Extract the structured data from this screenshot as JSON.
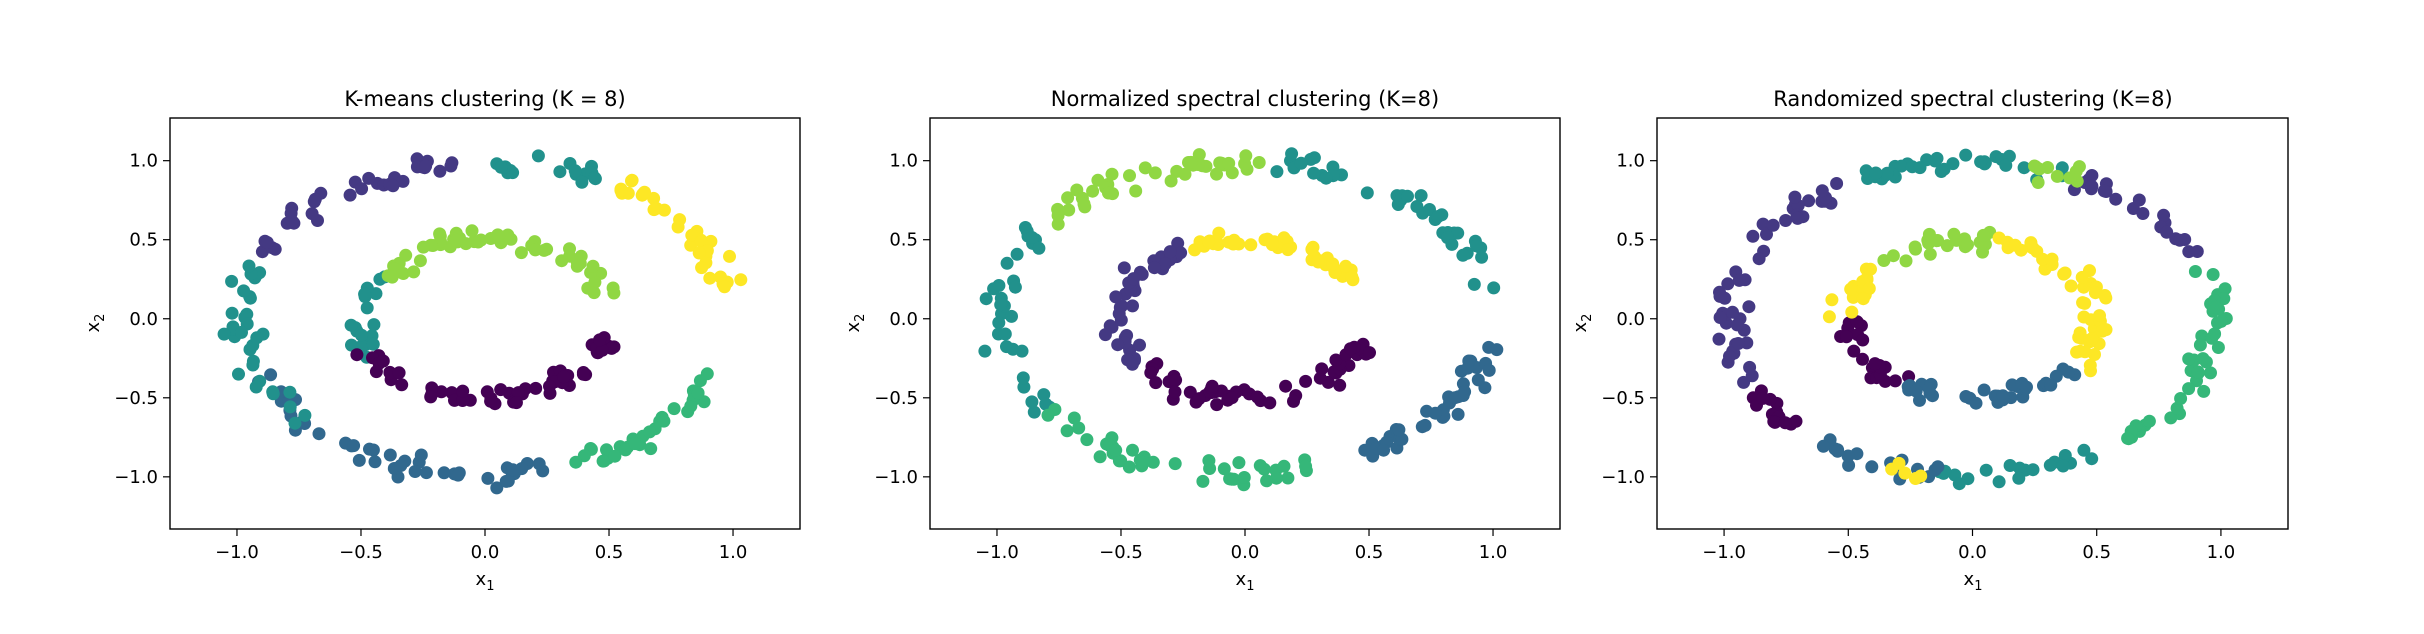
{
  "chart_data": [
    {
      "type": "scatter",
      "title": "K-means clustering (K = 8)",
      "xlabel": "x",
      "xlabel_sub": "1",
      "ylabel": "x",
      "ylabel_sub": "2",
      "xlim": [
        -1.27,
        1.27
      ],
      "ylim": [
        -1.33,
        1.27
      ],
      "xticks": [
        -1.0,
        -0.5,
        0.0,
        0.5,
        1.0
      ],
      "xtick_labels": [
        "−1.0",
        "−0.5",
        "0.0",
        "0.5",
        "1.0"
      ],
      "yticks": [
        -1.0,
        -0.5,
        0.0,
        0.5,
        1.0
      ],
      "ytick_labels": [
        "−1.0",
        "−0.5",
        "0.0",
        "0.5",
        "1.0"
      ],
      "grid": false,
      "groups": [
        {
          "color": "#fde725",
          "arcs": [
            {
              "r": 0.99,
              "a0": 10,
              "a1": 58,
              "n": 34,
              "ring": "outer"
            }
          ]
        },
        {
          "color": "#35b779",
          "arcs": [
            {
              "r": 0.99,
              "a0": -70,
              "a1": -18,
              "n": 34,
              "ring": "outer"
            }
          ]
        },
        {
          "color": "#31688e",
          "arcs": [
            {
              "r": 0.99,
              "a0": -158,
              "a1": -75,
              "n": 44,
              "ring": "outer"
            }
          ]
        },
        {
          "color": "#21918c",
          "arcs": [
            {
              "r": 0.99,
              "a0": 160,
              "a1": 222,
              "n": 34,
              "ring": "outer"
            },
            {
              "r": 0.99,
              "a0": 62,
              "a1": 95,
              "n": 18,
              "ring": "outer"
            },
            {
              "r": 0.5,
              "a0": 148,
              "a1": 208,
              "n": 18,
              "ring": "inner"
            }
          ]
        },
        {
          "color": "#443983",
          "arcs": [
            {
              "r": 0.99,
              "a0": 97,
              "a1": 155,
              "n": 34,
              "ring": "outer"
            }
          ]
        },
        {
          "color": "#90d743",
          "arcs": [
            {
              "r": 0.5,
              "a0": 15,
              "a1": 145,
              "n": 54,
              "ring": "inner"
            }
          ]
        },
        {
          "color": "#440154",
          "arcs": [
            {
              "r": 0.5,
              "a0": 200,
              "a1": 345,
              "n": 62,
              "ring": "inner"
            }
          ]
        }
      ]
    },
    {
      "type": "scatter",
      "title": "Normalized spectral clustering (K=8)",
      "xlabel": "x",
      "xlabel_sub": "1",
      "ylabel": "x",
      "ylabel_sub": "2",
      "xlim": [
        -1.27,
        1.27
      ],
      "ylim": [
        -1.33,
        1.27
      ],
      "xticks": [
        -1.0,
        -0.5,
        0.0,
        0.5,
        1.0
      ],
      "xtick_labels": [
        "−1.0",
        "−0.5",
        "0.0",
        "0.5",
        "1.0"
      ],
      "yticks": [
        -1.0,
        -0.5,
        0.0,
        0.5,
        1.0
      ],
      "ytick_labels": [
        "−1.0",
        "−0.5",
        "0.0",
        "0.5",
        "1.0"
      ],
      "grid": false,
      "groups": [
        {
          "color": "#90d743",
          "arcs": [
            {
              "r": 0.99,
              "a0": 85,
              "a1": 140,
              "n": 40,
              "ring": "outer"
            }
          ]
        },
        {
          "color": "#21918c",
          "arcs": [
            {
              "r": 0.99,
              "a0": 10,
              "a1": 82,
              "n": 40,
              "ring": "outer"
            },
            {
              "r": 0.99,
              "a0": 145,
              "a1": 215,
              "n": 34,
              "ring": "outer"
            }
          ]
        },
        {
          "color": "#35b779",
          "arcs": [
            {
              "r": 0.99,
              "a0": 218,
              "a1": 288,
              "n": 46,
              "ring": "outer"
            }
          ]
        },
        {
          "color": "#31688e",
          "arcs": [
            {
              "r": 0.99,
              "a0": 292,
              "a1": 350,
              "n": 40,
              "ring": "outer"
            }
          ]
        },
        {
          "color": "#fde725",
          "arcs": [
            {
              "r": 0.5,
              "a0": 28,
              "a1": 115,
              "n": 44,
              "ring": "inner"
            }
          ]
        },
        {
          "color": "#443983",
          "arcs": [
            {
              "r": 0.5,
              "a0": 120,
              "a1": 215,
              "n": 40,
              "ring": "inner"
            }
          ]
        },
        {
          "color": "#440154",
          "arcs": [
            {
              "r": 0.5,
              "a0": 220,
              "a1": 345,
              "n": 54,
              "ring": "inner"
            }
          ]
        }
      ]
    },
    {
      "type": "scatter",
      "title": "Randomized spectral clustering (K=8)",
      "xlabel": "x",
      "xlabel_sub": "1",
      "ylabel": "x",
      "ylabel_sub": "2",
      "xlim": [
        -1.27,
        1.27
      ],
      "ylim": [
        -1.33,
        1.27
      ],
      "xticks": [
        -1.0,
        -0.5,
        0.0,
        0.5,
        1.0
      ],
      "xtick_labels": [
        "−1.0",
        "−0.5",
        "0.0",
        "0.5",
        "1.0"
      ],
      "yticks": [
        -1.0,
        -0.5,
        0.0,
        0.5,
        1.0
      ],
      "ytick_labels": [
        "−1.0",
        "−0.5",
        "0.0",
        "0.5",
        "1.0"
      ],
      "grid": false,
      "groups": [
        {
          "color": "#443983",
          "arcs": [
            {
              "r": 0.99,
              "a0": 120,
              "a1": 205,
              "n": 50,
              "ring": "outer"
            },
            {
              "r": 0.99,
              "a0": 25,
              "a1": 65,
              "n": 22,
              "ring": "outer"
            }
          ]
        },
        {
          "color": "#21918c",
          "arcs": [
            {
              "r": 0.99,
              "a0": 68,
              "a1": 118,
              "n": 34,
              "ring": "outer"
            },
            {
              "r": 0.99,
              "a0": 262,
              "a1": 300,
              "n": 20,
              "ring": "outer"
            }
          ]
        },
        {
          "color": "#35b779",
          "arcs": [
            {
              "r": 0.99,
              "a0": 302,
              "a1": 18,
              "n": 42,
              "ring": "outer"
            }
          ]
        },
        {
          "color": "#440154",
          "arcs": [
            {
              "r": 0.99,
              "a0": 208,
              "a1": 228,
              "n": 14,
              "ring": "outer"
            },
            {
              "r": 0.5,
              "a0": 180,
              "a1": 235,
              "n": 22,
              "ring": "inner"
            }
          ]
        },
        {
          "color": "#31688e",
          "arcs": [
            {
              "r": 0.99,
              "a0": 230,
              "a1": 260,
              "n": 18,
              "ring": "outer"
            },
            {
              "r": 0.5,
              "a0": 238,
              "a1": 320,
              "n": 34,
              "ring": "inner"
            }
          ]
        },
        {
          "color": "#90d743",
          "arcs": [
            {
              "r": 0.99,
              "a0": 62,
              "a1": 78,
              "n": 10,
              "ring": "outer"
            },
            {
              "r": 0.5,
              "a0": 80,
              "a1": 140,
              "n": 24,
              "ring": "inner"
            }
          ]
        },
        {
          "color": "#fde725",
          "arcs": [
            {
              "r": 0.5,
              "a0": 322,
              "a1": 78,
              "n": 46,
              "ring": "inner"
            },
            {
              "r": 0.5,
              "a0": 142,
              "a1": 178,
              "n": 16,
              "ring": "inner"
            },
            {
              "r": 0.99,
              "a0": 250,
              "a1": 258,
              "n": 5,
              "ring": "outer"
            }
          ]
        }
      ]
    }
  ]
}
